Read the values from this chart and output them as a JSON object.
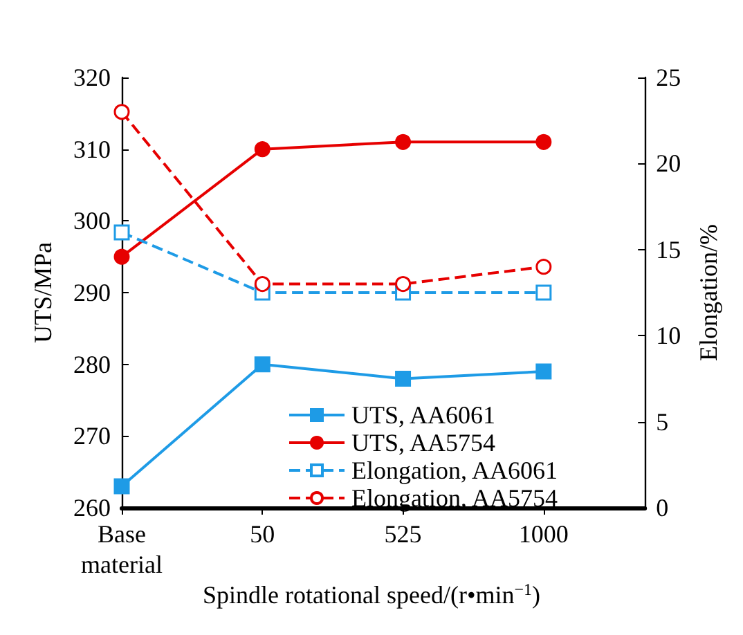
{
  "chart_data": {
    "type": "line",
    "xlabel": "Spindle rotational speed/(r•min$^{−1}$)",
    "ylabel": "UTS/MPa",
    "y2label": "Elongation/%",
    "categories": [
      "Base\nmaterial",
      "50",
      "525",
      "1000"
    ],
    "ylim": [
      260,
      320
    ],
    "yticks": [
      260,
      270,
      280,
      290,
      300,
      310,
      320
    ],
    "y2lim": [
      0,
      25
    ],
    "y2ticks": [
      0,
      5,
      10,
      15,
      20,
      25
    ],
    "grid": false,
    "legend": "bottom",
    "series": [
      {
        "name": "UTS, AA6061",
        "color": "#1e9be6",
        "values": [
          263,
          280,
          278,
          279
        ],
        "marker": "square",
        "line_style": "solid"
      },
      {
        "name": "UTS, AA5754",
        "color": "#e60000",
        "values": [
          295,
          310,
          311,
          311
        ],
        "marker": "circle",
        "line_style": "solid"
      },
      {
        "name": "Elongation, AA6061",
        "color": "#1e9be6",
        "values": [
          16,
          12.5,
          12.5,
          12.5
        ],
        "marker": "square",
        "line_style": "dashed",
        "axis": "y2"
      },
      {
        "name": "Elongation, AA5754",
        "color": "#e60000",
        "values": [
          23,
          13,
          13,
          14
        ],
        "marker": "circle",
        "line_style": "dashed",
        "axis": "y2"
      }
    ]
  }
}
